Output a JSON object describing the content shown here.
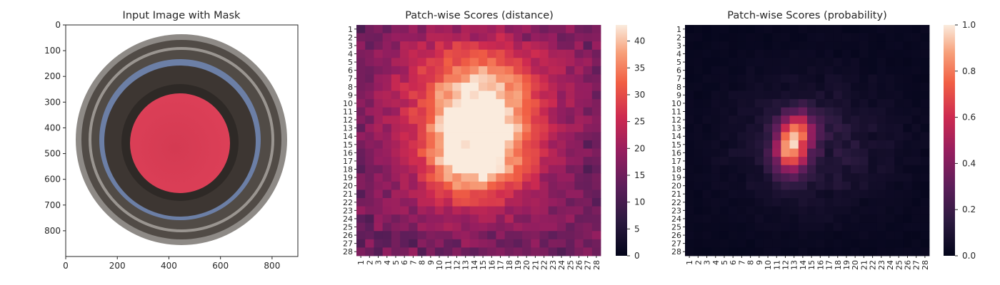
{
  "chart_data": [
    {
      "type": "image",
      "title": "Input Image with Mask",
      "xlim": [
        0,
        900
      ],
      "ylim": [
        900,
        0
      ],
      "x_ticks": [
        "0",
        "200",
        "400",
        "600",
        "800"
      ],
      "y_ticks": [
        "0",
        "100",
        "200",
        "300",
        "400",
        "500",
        "600",
        "700",
        "800"
      ],
      "image_content": "top view of a dark glass bottle neck with a red mask over the central opening",
      "colors": {
        "mask": "#d83a52",
        "glass_dark": "#4a4541",
        "glass_rim": "#8a8683",
        "glass_blue": "#6f87b0"
      }
    },
    {
      "type": "heatmap",
      "title": "Patch-wise Scores (distance)",
      "rows": 28,
      "cols": 28,
      "x_tick_labels": [
        "1",
        "2",
        "3",
        "4",
        "5",
        "6",
        "7",
        "8",
        "9",
        "10",
        "11",
        "12",
        "13",
        "14",
        "15",
        "16",
        "17",
        "18",
        "19",
        "20",
        "21",
        "22",
        "23",
        "24",
        "25",
        "26",
        "27",
        "28"
      ],
      "y_tick_labels": [
        "1",
        "2",
        "3",
        "4",
        "5",
        "6",
        "7",
        "8",
        "9",
        "10",
        "11",
        "12",
        "13",
        "14",
        "15",
        "16",
        "17",
        "18",
        "19",
        "20",
        "21",
        "22",
        "23",
        "24",
        "25",
        "26",
        "27",
        "28"
      ],
      "colormap": "rocket",
      "vmin": 0,
      "vmax": 43,
      "colorbar_ticks": [
        "0",
        "5",
        "10",
        "15",
        "20",
        "25",
        "30",
        "35",
        "40"
      ],
      "peak": {
        "row": 15,
        "col": 13,
        "value": 42
      },
      "description_values": "values approx 10-20 at border, rising to ~30 in upper center ring and ~40-42 in central blob around rows 12-20, cols 11-16"
    },
    {
      "type": "heatmap",
      "title": "Patch-wise Scores (probability)",
      "rows": 28,
      "cols": 28,
      "x_tick_labels": [
        "1",
        "2",
        "3",
        "4",
        "5",
        "6",
        "7",
        "8",
        "9",
        "10",
        "11",
        "12",
        "13",
        "14",
        "15",
        "16",
        "17",
        "18",
        "19",
        "20",
        "21",
        "22",
        "23",
        "24",
        "25",
        "26",
        "27",
        "28"
      ],
      "y_tick_labels": [
        "1",
        "2",
        "3",
        "4",
        "5",
        "6",
        "7",
        "8",
        "9",
        "10",
        "11",
        "12",
        "13",
        "14",
        "15",
        "16",
        "17",
        "18",
        "19",
        "20",
        "21",
        "22",
        "23",
        "24",
        "25",
        "26",
        "27",
        "28"
      ],
      "colormap": "rocket",
      "vmin": 0,
      "vmax": 1,
      "colorbar_ticks": [
        "0.0",
        "0.2",
        "0.4",
        "0.6",
        "0.8",
        "1.0"
      ],
      "peak": {
        "row": 16,
        "col": 12,
        "value": 0.85
      },
      "description_values": "near 0 everywhere except a blob at rows 12-19, cols 11-14 reaching ~0.6-0.85"
    }
  ]
}
